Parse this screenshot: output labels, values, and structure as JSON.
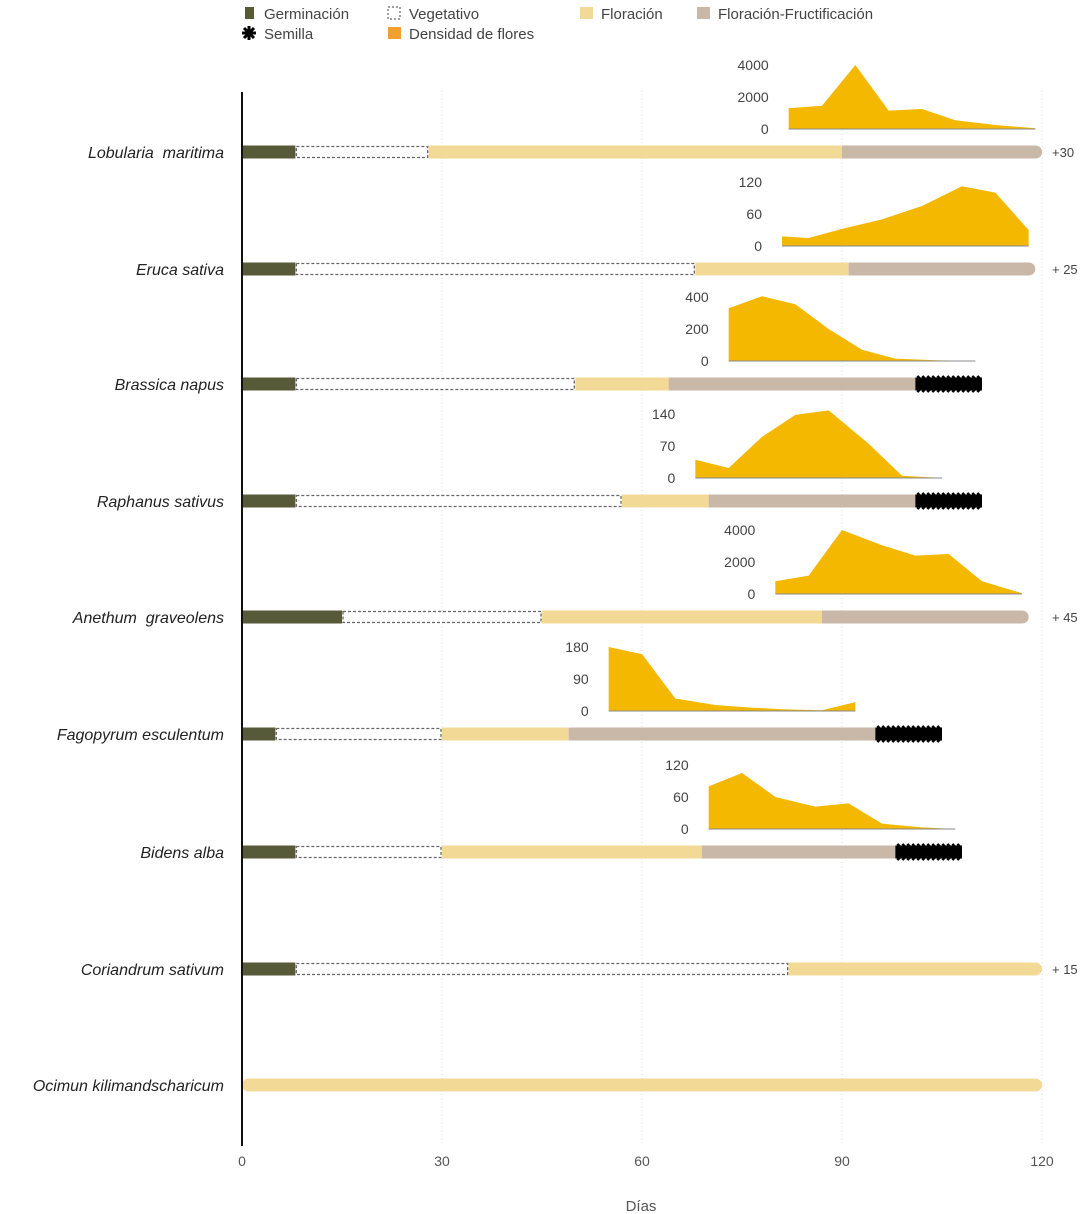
{
  "chart_data": {
    "type": "gantt",
    "xlabel": "Días",
    "xlim": [
      0,
      120
    ],
    "xticks": [
      0,
      30,
      60,
      90,
      120
    ],
    "colors": {
      "germinacion": "#575a38",
      "vegetativo_stroke": "#666666",
      "floracion": "#f2d995",
      "floracion_fructificacion": "#c9b8a8",
      "semilla": "#000000",
      "densidad": "#f5b800"
    },
    "legend": [
      {
        "key": "germinacion",
        "label": "Germinación"
      },
      {
        "key": "vegetativo",
        "label": "Vegetativo"
      },
      {
        "key": "floracion",
        "label": "Floración"
      },
      {
        "key": "floracion_fructificacion",
        "label": "Floración-Fructificación"
      },
      {
        "key": "semilla",
        "label": "Semilla"
      },
      {
        "key": "densidad",
        "label": "Densidad de flores"
      }
    ],
    "species": [
      {
        "name": "Lobularia  maritima",
        "extra": "+30",
        "phases": [
          {
            "type": "germinacion",
            "start": 0,
            "end": 8
          },
          {
            "type": "vegetativo",
            "start": 8,
            "end": 28
          },
          {
            "type": "floracion",
            "start": 28,
            "end": 90
          },
          {
            "type": "floracion_fructificacion",
            "start": 90,
            "end": 120
          }
        ],
        "density": {
          "ticks": [
            "4000",
            "2000",
            "0"
          ],
          "ymax": 4000,
          "xstart": 82,
          "xend": 119,
          "x": [
            82,
            87,
            92,
            97,
            102,
            107,
            113,
            119
          ],
          "y": [
            1300,
            1450,
            4000,
            1150,
            1250,
            550,
            250,
            50
          ]
        }
      },
      {
        "name": "Eruca sativa",
        "extra": "+ 25",
        "phases": [
          {
            "type": "germinacion",
            "start": 0,
            "end": 8
          },
          {
            "type": "vegetativo",
            "start": 8,
            "end": 68
          },
          {
            "type": "floracion",
            "start": 68,
            "end": 91
          },
          {
            "type": "floracion_fructificacion",
            "start": 91,
            "end": 119
          }
        ],
        "density": {
          "ticks": [
            "120",
            "60",
            "0"
          ],
          "ymax": 120,
          "xstart": 81,
          "xend": 118,
          "x": [
            81,
            85,
            90,
            96,
            102,
            108,
            113,
            118
          ],
          "y": [
            18,
            15,
            32,
            50,
            75,
            112,
            100,
            30
          ]
        }
      },
      {
        "name": "Brassica napus",
        "extra": "",
        "phases": [
          {
            "type": "germinacion",
            "start": 0,
            "end": 8
          },
          {
            "type": "vegetativo",
            "start": 8,
            "end": 50
          },
          {
            "type": "floracion",
            "start": 50,
            "end": 64
          },
          {
            "type": "floracion_fructificacion",
            "start": 64,
            "end": 101
          },
          {
            "type": "semilla",
            "start": 101,
            "end": 111
          }
        ],
        "density": {
          "ticks": [
            "400",
            "200",
            "0"
          ],
          "ymax": 400,
          "xstart": 73,
          "xend": 110,
          "x": [
            73,
            78,
            83,
            88,
            93,
            98,
            104,
            110
          ],
          "y": [
            330,
            405,
            355,
            200,
            70,
            15,
            5,
            0
          ]
        }
      },
      {
        "name": "Raphanus sativus",
        "extra": "",
        "phases": [
          {
            "type": "germinacion",
            "start": 0,
            "end": 8
          },
          {
            "type": "vegetativo",
            "start": 8,
            "end": 57
          },
          {
            "type": "floracion",
            "start": 57,
            "end": 70
          },
          {
            "type": "floracion_fructificacion",
            "start": 70,
            "end": 101
          },
          {
            "type": "semilla",
            "start": 101,
            "end": 111
          }
        ],
        "density": {
          "ticks": [
            "140",
            "70",
            "0"
          ],
          "ymax": 140,
          "xstart": 68,
          "xend": 105,
          "x": [
            68,
            73,
            78,
            83,
            88,
            94,
            99,
            105
          ],
          "y": [
            40,
            22,
            90,
            138,
            148,
            75,
            5,
            0
          ]
        }
      },
      {
        "name": "Anethum  graveolens",
        "extra": "+ 45",
        "phases": [
          {
            "type": "germinacion",
            "start": 0,
            "end": 15
          },
          {
            "type": "vegetativo",
            "start": 15,
            "end": 45
          },
          {
            "type": "floracion",
            "start": 45,
            "end": 87
          },
          {
            "type": "floracion_fructificacion",
            "start": 87,
            "end": 118
          }
        ],
        "density": {
          "ticks": [
            "4000",
            "2000",
            "0"
          ],
          "ymax": 4000,
          "xstart": 80,
          "xend": 117,
          "x": [
            80,
            85,
            90,
            96,
            101,
            106,
            111,
            117
          ],
          "y": [
            800,
            1150,
            4000,
            3050,
            2400,
            2500,
            800,
            50
          ]
        }
      },
      {
        "name": "Fagopyrum esculentum",
        "extra": "",
        "phases": [
          {
            "type": "germinacion",
            "start": 0,
            "end": 5
          },
          {
            "type": "vegetativo",
            "start": 5,
            "end": 30
          },
          {
            "type": "floracion",
            "start": 30,
            "end": 49
          },
          {
            "type": "floracion_fructificacion",
            "start": 49,
            "end": 95
          },
          {
            "type": "semilla",
            "start": 95,
            "end": 105
          }
        ],
        "density": {
          "ticks": [
            "180",
            "90",
            "0"
          ],
          "ymax": 180,
          "xstart": 55,
          "xend": 92,
          "x": [
            55,
            60,
            65,
            71,
            76,
            81,
            87,
            92
          ],
          "y": [
            180,
            160,
            35,
            17,
            10,
            5,
            2,
            25
          ]
        }
      },
      {
        "name": "Bidens alba",
        "extra": "",
        "phases": [
          {
            "type": "germinacion",
            "start": 0,
            "end": 8
          },
          {
            "type": "vegetativo",
            "start": 8,
            "end": 30
          },
          {
            "type": "floracion",
            "start": 30,
            "end": 69
          },
          {
            "type": "floracion_fructificacion",
            "start": 69,
            "end": 98
          },
          {
            "type": "semilla",
            "start": 98,
            "end": 108
          }
        ],
        "density": {
          "ticks": [
            "120",
            "60",
            "0"
          ],
          "ymax": 120,
          "xstart": 70,
          "xend": 107,
          "x": [
            70,
            75,
            80,
            86,
            91,
            96,
            102,
            107
          ],
          "y": [
            80,
            105,
            60,
            42,
            48,
            10,
            3,
            0
          ]
        }
      },
      {
        "name": "Coriandrum sativum",
        "extra": "+ 15",
        "phases": [
          {
            "type": "germinacion",
            "start": 0,
            "end": 8
          },
          {
            "type": "vegetativo",
            "start": 8,
            "end": 82
          },
          {
            "type": "floracion",
            "start": 82,
            "end": 120
          }
        ]
      },
      {
        "name": "Ocimun kilimandscharicum",
        "extra": "",
        "phases": [
          {
            "type": "floracion",
            "start": 0,
            "end": 120
          }
        ]
      }
    ]
  }
}
